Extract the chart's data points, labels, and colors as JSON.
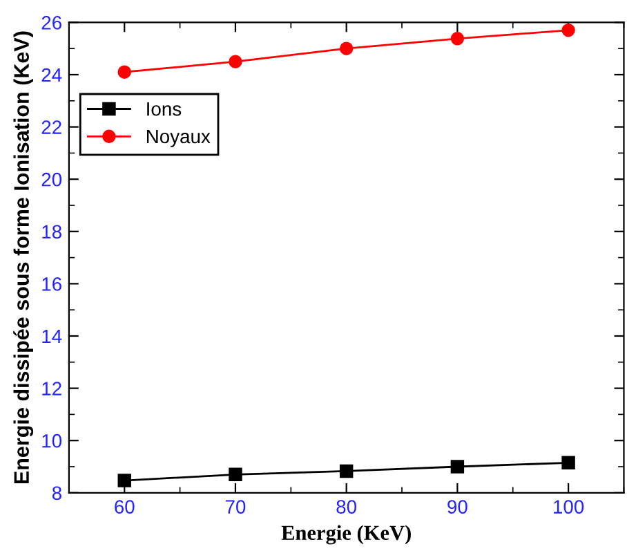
{
  "chart_data": {
    "type": "line",
    "xlabel": "Energie (KeV)",
    "ylabel": "Energie dissipée sous forme Ionisation (KeV)",
    "x": [
      60,
      70,
      80,
      90,
      100
    ],
    "series": [
      {
        "name": "Ions",
        "color": "#000000",
        "values": [
          8.47,
          8.7,
          8.83,
          9.0,
          9.15
        ],
        "marker": "square"
      },
      {
        "name": "Noyaux",
        "color": "#ff0000",
        "values": [
          24.1,
          24.5,
          25.0,
          25.38,
          25.7
        ],
        "marker": "circle"
      }
    ],
    "xlim": [
      55,
      105
    ],
    "xticks": [
      60,
      70,
      80,
      90,
      100
    ],
    "ylim": [
      8,
      26
    ],
    "yticks": [
      8,
      10,
      12,
      14,
      16,
      18,
      20,
      22,
      24,
      26
    ],
    "grid": false,
    "legend": "top left",
    "line_style": "solid"
  }
}
